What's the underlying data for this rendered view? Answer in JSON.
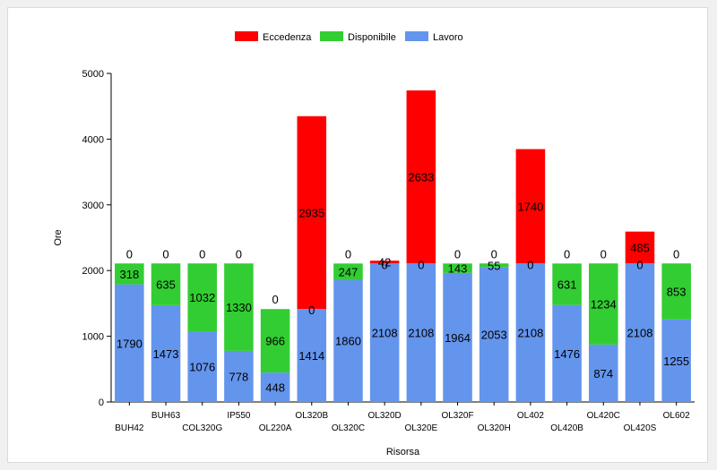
{
  "chart_data": {
    "type": "bar",
    "stacked": true,
    "title": "",
    "xlabel": "Risorsa",
    "ylabel": "Ore",
    "ylim": [
      0,
      5000
    ],
    "yticks": [
      0,
      1000,
      2000,
      3000,
      4000,
      5000
    ],
    "legend_position": "top-center",
    "categories": [
      "BUH42",
      "BUH63",
      "COL320G",
      "IP550",
      "OL220A",
      "OL320B",
      "OL320C",
      "OL320D",
      "OL320E",
      "OL320F",
      "OL320H",
      "OL402",
      "OL420B",
      "OL420C",
      "OL420S",
      "OL602"
    ],
    "series": [
      {
        "name": "Lavoro",
        "color": "#6495ed",
        "values": [
          1790,
          1473,
          1076,
          778,
          448,
          1414,
          1860,
          2108,
          2108,
          1964,
          2053,
          2108,
          1476,
          874,
          2108,
          1255
        ]
      },
      {
        "name": "Disponibile",
        "color": "#32cd32",
        "values": [
          318,
          635,
          1032,
          1330,
          966,
          0,
          247,
          0,
          0,
          143,
          55,
          0,
          631,
          1234,
          0,
          853
        ]
      },
      {
        "name": "Eccedenza",
        "color": "#ff0000",
        "values": [
          0,
          0,
          0,
          0,
          0,
          2935,
          0,
          42,
          2633,
          0,
          0,
          1740,
          0,
          0,
          485,
          0
        ]
      }
    ],
    "legend_order": [
      "Eccedenza",
      "Disponibile",
      "Lavoro"
    ]
  }
}
